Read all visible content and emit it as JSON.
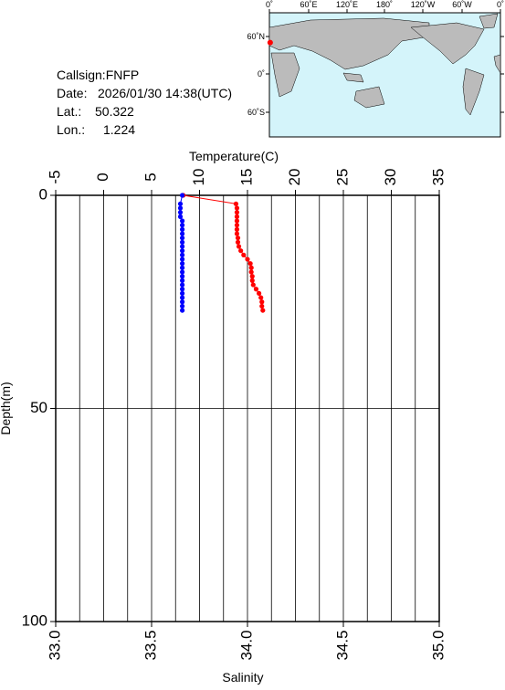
{
  "chart_data": {
    "type": "profile",
    "x2label": "Temperature(C)",
    "xlabel": "Salinity",
    "ylabel": "Depth(m)",
    "x2lim": [
      -5,
      35
    ],
    "x2ticks": [
      -5,
      0,
      5,
      10,
      15,
      20,
      25,
      30,
      35
    ],
    "x2grid": [
      -2.5,
      0,
      2.5,
      5,
      7.5,
      10,
      12.5,
      15,
      17.5,
      20,
      22.5,
      25,
      27.5,
      30,
      32.5
    ],
    "xlim": [
      33,
      35
    ],
    "xticks": [
      {
        "value": 33,
        "label": "33.0"
      },
      {
        "value": 33.5,
        "label": "33.5"
      },
      {
        "value": 34,
        "label": "34.0"
      },
      {
        "value": 34.5,
        "label": "34.5"
      },
      {
        "value": 35,
        "label": "35.0"
      }
    ],
    "ylim": [
      0,
      100
    ],
    "yticks": [
      0,
      50,
      100
    ],
    "grid": true,
    "depth": [
      0,
      2,
      3,
      4,
      5,
      6,
      7,
      8,
      9,
      10,
      11,
      12,
      13,
      14,
      15,
      16,
      17,
      18,
      19,
      20,
      21,
      22,
      23,
      24,
      25,
      26,
      27
    ],
    "series": [
      {
        "color": "#ff0000",
        "axis": "x2",
        "values": [
          8.3,
          13.8,
          13.9,
          13.9,
          13.9,
          13.9,
          13.9,
          13.9,
          13.9,
          14.0,
          14.0,
          14.1,
          14.3,
          14.6,
          15.0,
          15.3,
          15.4,
          15.4,
          15.5,
          15.5,
          15.6,
          15.9,
          16.2,
          16.4,
          16.5,
          16.5,
          16.6
        ]
      },
      {
        "color": "#0000ff",
        "axis": "x",
        "values": [
          33.66,
          33.65,
          33.65,
          33.65,
          33.65,
          33.66,
          33.66,
          33.66,
          33.66,
          33.66,
          33.66,
          33.66,
          33.66,
          33.66,
          33.66,
          33.66,
          33.66,
          33.66,
          33.66,
          33.66,
          33.66,
          33.66,
          33.66,
          33.66,
          33.66,
          33.66,
          33.66
        ]
      }
    ]
  },
  "info": {
    "callsign": "Callsign:FNFP",
    "date_label": "Date:",
    "date": "2026/01/30 14:38(UTC)",
    "lat_label": "Lat.:",
    "lat": 50.322,
    "lon_label": "Lon.:",
    "lon": 1.224
  },
  "map": {
    "top_labels": [
      "0˚",
      "60˚E",
      "120˚E",
      "180˚",
      "120˚W",
      "60˚W",
      "0˚"
    ],
    "left_labels": [
      "60˚N",
      "0˚",
      "60˚S"
    ]
  }
}
